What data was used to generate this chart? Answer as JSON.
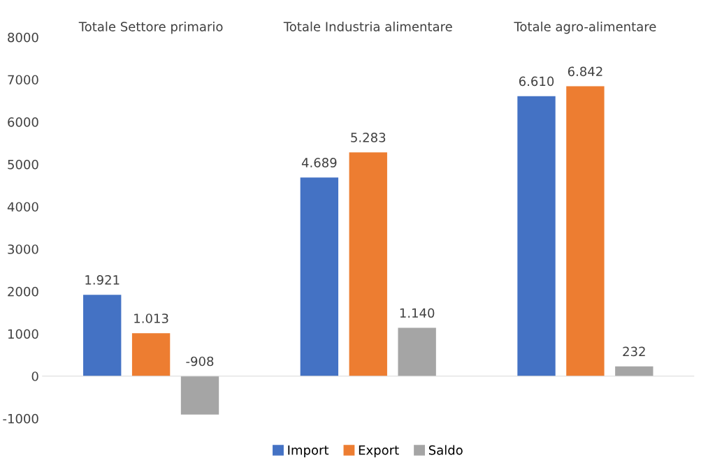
{
  "chart_data": {
    "type": "bar",
    "categories": [
      "Totale Settore primario",
      "Totale Industria alimentare",
      "Totale agro-alimentare"
    ],
    "series": [
      {
        "name": "Import",
        "color": "#4472c4",
        "values": [
          1921,
          4689,
          6610
        ],
        "value_labels": [
          "1.921",
          "4.689",
          "6.610"
        ]
      },
      {
        "name": "Export",
        "color": "#ed7d31",
        "values": [
          1013,
          5283,
          6842
        ],
        "value_labels": [
          "1.013",
          "5.283",
          "6.842"
        ]
      },
      {
        "name": "Saldo",
        "color": "#a5a5a5",
        "values": [
          -908,
          1140,
          232
        ],
        "value_labels": [
          "-908",
          "1.140",
          "232"
        ]
      }
    ],
    "ylim": [
      -1000,
      8000
    ],
    "yticks": [
      -1000,
      0,
      1000,
      2000,
      3000,
      4000,
      5000,
      6000,
      7000,
      8000
    ],
    "legend": "bottom"
  }
}
